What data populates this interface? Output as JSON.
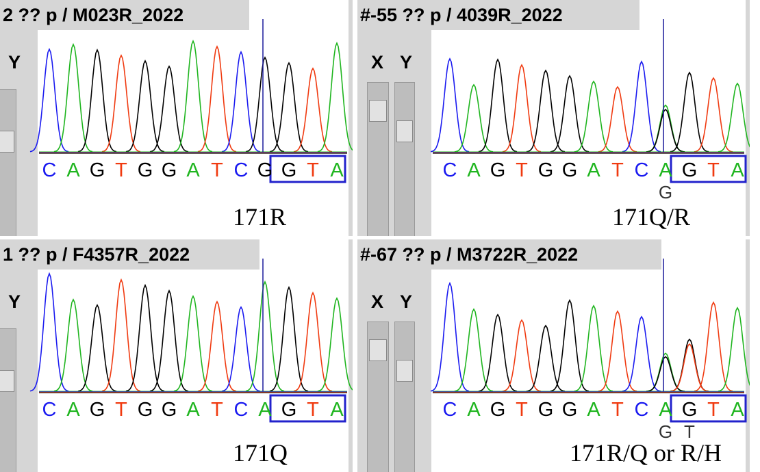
{
  "panels": [
    {
      "title": "2 ?? p / M023R_2022",
      "axis_labels": [
        "Y"
      ],
      "bases": [
        "C",
        "A",
        "G",
        "T",
        "G",
        "G",
        "A",
        "T",
        "C",
        "G",
        "G",
        "T",
        "A"
      ],
      "secondary_calls": [
        null,
        null,
        null,
        null,
        null,
        null,
        null,
        null,
        null,
        null,
        null,
        null,
        null
      ],
      "label": "171R"
    },
    {
      "title": "#-55 ?? p / 4039R_2022",
      "axis_labels": [
        "X",
        "Y"
      ],
      "bases": [
        "C",
        "A",
        "G",
        "T",
        "G",
        "G",
        "A",
        "T",
        "C",
        "A",
        "G",
        "T",
        "A"
      ],
      "secondary_calls": [
        null,
        null,
        null,
        null,
        null,
        null,
        null,
        null,
        null,
        "G",
        null,
        null,
        null
      ],
      "label": "171Q/R"
    },
    {
      "title": "1 ?? p / F4357R_2022",
      "axis_labels": [
        "Y"
      ],
      "bases": [
        "C",
        "A",
        "G",
        "T",
        "G",
        "G",
        "A",
        "T",
        "C",
        "A",
        "G",
        "T",
        "A"
      ],
      "secondary_calls": [
        null,
        null,
        null,
        null,
        null,
        null,
        null,
        null,
        null,
        null,
        null,
        null,
        null
      ],
      "label": "171Q"
    },
    {
      "title": "#-67 ?? p / M3722R_2022",
      "axis_labels": [
        "X",
        "Y"
      ],
      "bases": [
        "C",
        "A",
        "G",
        "T",
        "G",
        "G",
        "A",
        "T",
        "C",
        "A",
        "G",
        "T",
        "A"
      ],
      "secondary_calls": [
        null,
        null,
        null,
        null,
        null,
        null,
        null,
        null,
        null,
        "G",
        "T",
        null,
        null
      ],
      "label": "171R/Q or R/H"
    }
  ]
}
